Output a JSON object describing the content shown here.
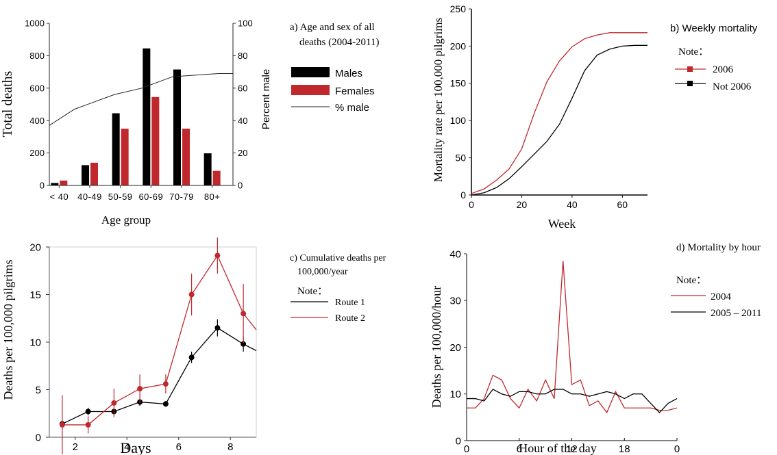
{
  "chart_data": [
    {
      "id": "a",
      "type": "bar",
      "title_line1": "a) Age and sex of all",
      "title_line2": "deaths (2004-2011)",
      "xlabel": "Age group",
      "ylabel": "Total deaths",
      "y2label": "Percent male",
      "categories": [
        "< 40",
        "40-49",
        "50-59",
        "60-69",
        "70-79",
        "80+"
      ],
      "ylim": [
        0,
        1000
      ],
      "yticks": [
        "0",
        "200",
        "400",
        "600",
        "800",
        "1000"
      ],
      "y2lim": [
        0,
        100
      ],
      "y2ticks": [
        "0",
        "20",
        "40",
        "60",
        "80",
        "100"
      ],
      "series": [
        {
          "name": "Males",
          "color": "#000000",
          "values": [
            15,
            125,
            445,
            845,
            715,
            198
          ]
        },
        {
          "name": "Females",
          "color": "#c0282d",
          "values": [
            30,
            140,
            350,
            545,
            350,
            90
          ]
        }
      ],
      "line": {
        "name": "% male",
        "color": "#222222",
        "x_positions": [
          -0.6,
          0.5,
          1.8,
          2.7,
          3.7,
          5.2
        ],
        "values": [
          37,
          47,
          56,
          60,
          67,
          69
        ]
      }
    },
    {
      "id": "b",
      "type": "line",
      "title": "b) Weekly mortality",
      "xlabel": "Week",
      "ylabel": "Mortality rate per 100,000 pilgrims",
      "xlim": [
        0,
        70
      ],
      "xticks": [
        "0",
        "20",
        "40",
        "60"
      ],
      "ylim": [
        0,
        250
      ],
      "yticks": [
        "0",
        "50",
        "100",
        "150",
        "200",
        "250"
      ],
      "note": "Note：",
      "series": [
        {
          "name": "2006",
          "color": "#c0282d",
          "marker": "square",
          "x": [
            0,
            5,
            10,
            15,
            20,
            25,
            30,
            35,
            40,
            45,
            50,
            55,
            60,
            65,
            70
          ],
          "y": [
            2,
            8,
            20,
            35,
            62,
            110,
            152,
            180,
            199,
            210,
            215,
            218,
            218,
            218,
            218
          ]
        },
        {
          "name": "Not 2006",
          "color": "#000000",
          "marker": "square",
          "x": [
            0,
            5,
            10,
            15,
            20,
            25,
            30,
            35,
            40,
            45,
            50,
            55,
            60,
            65,
            70
          ],
          "y": [
            0,
            3,
            10,
            22,
            38,
            55,
            72,
            95,
            130,
            167,
            188,
            196,
            200,
            201,
            201
          ]
        }
      ]
    },
    {
      "id": "c",
      "type": "line",
      "title_line1": "c) Cumulative deaths per",
      "title_line2": "100,000/year",
      "xlabel": "Days",
      "ylabel": "Deaths per 100,000 pilgrims",
      "xlim": [
        1,
        9
      ],
      "xticks": [
        "2",
        "4",
        "6",
        "8"
      ],
      "ylim": [
        0,
        20
      ],
      "yticks": [
        "0",
        "5",
        "10",
        "15",
        "20"
      ],
      "note": "Note：",
      "series": [
        {
          "name": "Route 1",
          "color": "#000000",
          "x": [
            1.5,
            2.5,
            3.5,
            4.5,
            5.5,
            6.5,
            7.5,
            8.5,
            9.0
          ],
          "y": [
            1.4,
            2.7,
            2.7,
            3.7,
            3.5,
            8.4,
            11.5,
            9.8,
            9.1
          ],
          "err": [
            0.3,
            0.4,
            0.4,
            0.4,
            0.3,
            0.6,
            0.9,
            0.8,
            null
          ]
        },
        {
          "name": "Route 2",
          "color": "#c0282d",
          "x": [
            1.5,
            2.5,
            3.5,
            4.5,
            5.5,
            6.5,
            7.5,
            8.5,
            9.0
          ],
          "y": [
            1.3,
            1.3,
            3.6,
            5.1,
            5.6,
            15.0,
            19.1,
            13.0,
            11.3
          ],
          "err": [
            3.1,
            0.9,
            1.5,
            1.5,
            1.0,
            2.2,
            1.9,
            3.1,
            null
          ]
        }
      ]
    },
    {
      "id": "d",
      "type": "line",
      "title": "d) Mortality by hour",
      "xlabel": "Hour of the day",
      "ylabel": "Deaths per 100,000/hour",
      "xlim": [
        0,
        24
      ],
      "xticks": [
        "0",
        "6",
        "12",
        "18",
        "0"
      ],
      "ylim": [
        0,
        40
      ],
      "yticks": [
        "0",
        "10",
        "20",
        "30",
        "40"
      ],
      "note": "Note：",
      "series": [
        {
          "name": "2004",
          "color": "#c0282d",
          "x": [
            0,
            1,
            2,
            3,
            4,
            5,
            6,
            7,
            8,
            9,
            10,
            11,
            12,
            13,
            14,
            15,
            16,
            17,
            18,
            19,
            20,
            21,
            22,
            23,
            24
          ],
          "y": [
            7,
            7,
            9,
            14,
            13,
            9,
            7,
            11,
            8.5,
            13,
            9,
            38.5,
            12,
            13,
            7.5,
            8.5,
            6,
            10.5,
            7,
            7,
            7,
            7,
            6.5,
            6.5,
            7
          ]
        },
        {
          "name": "2005 – 2011",
          "color": "#000000",
          "x": [
            0,
            1,
            2,
            3,
            4,
            5,
            6,
            7,
            8,
            9,
            10,
            11,
            12,
            13,
            14,
            15,
            16,
            17,
            18,
            19,
            20,
            21,
            22,
            23,
            24
          ],
          "y": [
            9,
            9,
            8.5,
            11,
            10,
            9.5,
            10.5,
            10.5,
            10,
            10,
            11,
            11,
            10,
            10,
            9.5,
            10,
            10.5,
            10,
            9,
            10,
            10,
            8,
            6,
            8,
            9
          ]
        }
      ]
    }
  ]
}
